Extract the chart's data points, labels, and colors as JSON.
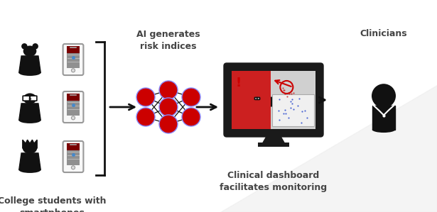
{
  "bg_color": "#ffffff",
  "label_students": "College students with\nsmartphones",
  "label_ai": "AI generates\nrisk indices",
  "label_dashboard": "Clinical dashboard\nfacilitates monitoring",
  "label_clinicians": "Clinicians",
  "dark_color": "#111111",
  "red_color": "#cc0000",
  "phone_header": "#7a0000",
  "phone_body": "#f8f8f8",
  "phone_screen_gray": "#888888",
  "node_color": "#cc0000",
  "node_edge": "#6666ff",
  "monitor_frame": "#1a1a1a",
  "monitor_screen_bg": "#dddddd",
  "monitor_left_bg": "#cc2222",
  "text_color": "#444444"
}
